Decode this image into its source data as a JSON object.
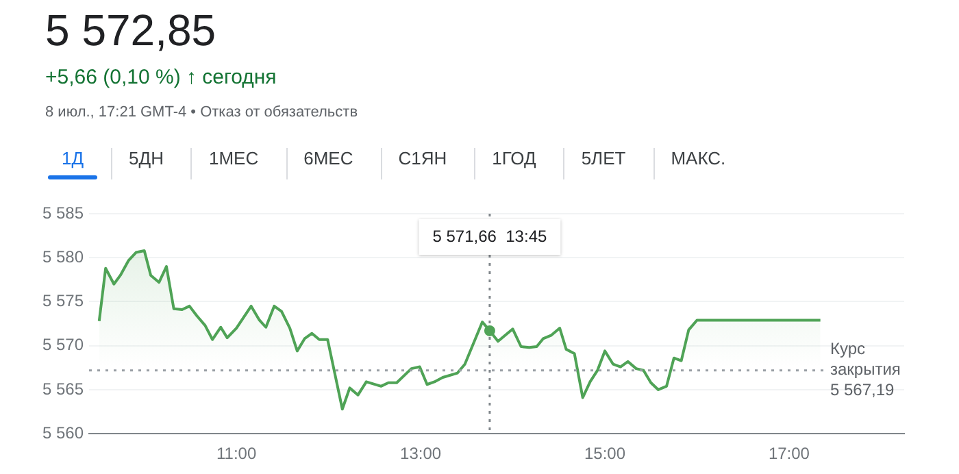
{
  "chart_data": {
    "type": "area",
    "title": "5 572,85",
    "subtitle": "+5,66 (0,10 %) ↑ сегодня",
    "annotations": [
      "8 июл., 17:21 GMT-4 • Отказ от обязательств",
      "1Д",
      "5ДН",
      "1МЕС",
      "6МЕС",
      "С1ЯН",
      "1ГОД",
      "5ЛЕТ",
      "МАКС.",
      "5 571,66  13:45"
    ],
    "series": [
      {
        "color": "#4fa356",
        "x": [
          9.51,
          9.58,
          9.67,
          9.74,
          9.83,
          9.91,
          10.0,
          10.07,
          10.16,
          10.24,
          10.32,
          10.41,
          10.49,
          10.57,
          10.66,
          10.74,
          10.83,
          10.9,
          11.0,
          11.16,
          11.25,
          11.32,
          11.41,
          11.49,
          11.58,
          11.66,
          11.74,
          11.82,
          11.9,
          11.99,
          12.15,
          12.23,
          12.32,
          12.41,
          12.57,
          12.65,
          12.74,
          12.83,
          12.9,
          12.99,
          13.07,
          13.15,
          13.24,
          13.4,
          13.48,
          13.67,
          13.75,
          13.84,
          14.0,
          14.09,
          14.18,
          14.26,
          14.33,
          14.42,
          14.51,
          14.58,
          14.67,
          14.76,
          14.84,
          14.92,
          15.0,
          15.09,
          15.17,
          15.25,
          15.34,
          15.42,
          15.5,
          15.58,
          15.67,
          15.75,
          15.83,
          15.91,
          16.0,
          17.34
        ],
        "values": [
          5572.8,
          5578.8,
          5577.0,
          5578.0,
          5579.7,
          5580.6,
          5580.8,
          5578.0,
          5577.2,
          5579.0,
          5574.2,
          5574.1,
          5574.5,
          5573.4,
          5572.3,
          5570.7,
          5572.1,
          5570.9,
          5572.0,
          5574.5,
          5572.9,
          5572.1,
          5574.5,
          5573.9,
          5572.0,
          5569.4,
          5570.8,
          5571.4,
          5570.7,
          5570.7,
          5562.8,
          5565.2,
          5564.4,
          5565.9,
          5565.4,
          5565.8,
          5565.8,
          5566.7,
          5567.4,
          5567.6,
          5565.6,
          5565.9,
          5566.4,
          5566.9,
          5567.9,
          5572.7,
          5571.7,
          5570.5,
          5571.9,
          5569.9,
          5569.8,
          5569.9,
          5570.8,
          5571.2,
          5572.0,
          5569.6,
          5569.1,
          5564.1,
          5565.9,
          5567.2,
          5569.4,
          5567.9,
          5567.6,
          5568.2,
          5567.4,
          5567.2,
          5565.8,
          5565.0,
          5565.4,
          5568.6,
          5568.3,
          5571.8,
          5572.9,
          5572.9
        ]
      }
    ],
    "xlim": [
      9.4,
      18.25
    ],
    "xticks": [
      {
        "value": 11,
        "label": "11:00"
      },
      {
        "value": 13,
        "label": "13:00"
      },
      {
        "value": 15,
        "label": "15:00"
      },
      {
        "value": 17,
        "label": "17:00"
      }
    ],
    "ylim": [
      5560,
      5585
    ],
    "yticks": [
      {
        "value": 5560,
        "label": "5 560"
      },
      {
        "value": 5565,
        "label": "5 565"
      },
      {
        "value": 5570,
        "label": "5 570"
      },
      {
        "value": 5575,
        "label": "5 575"
      },
      {
        "value": 5580,
        "label": "5 580"
      },
      {
        "value": 5585,
        "label": "5 585"
      }
    ],
    "grid": "y",
    "legend": false,
    "marker": "none",
    "line_style": "solid",
    "ref_lines": [
      {
        "axis": "y",
        "value": 5567.19,
        "label": "Курс\nзакрытия\n5 567,19",
        "line_style": "dotted",
        "color": "#9aa0a6"
      },
      {
        "axis": "x",
        "value": 13.75,
        "label": null,
        "line_style": "dotted",
        "color": "#80868b"
      }
    ]
  }
}
